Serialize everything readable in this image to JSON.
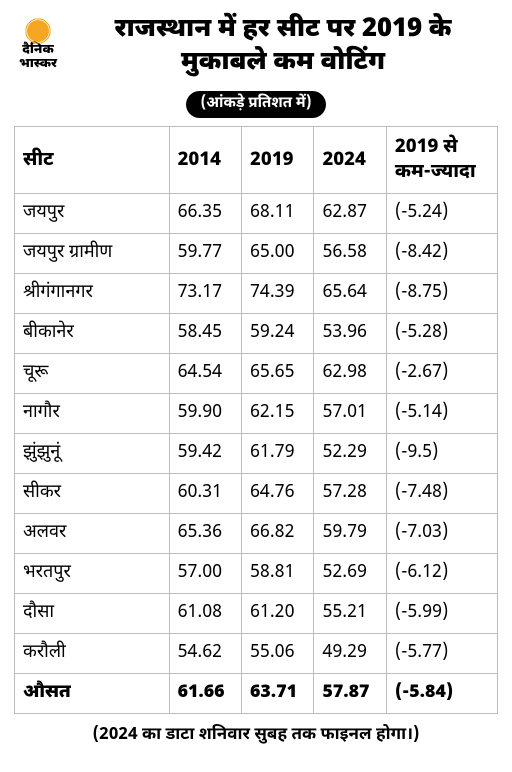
{
  "logo": {
    "line1": "दैनिक",
    "line2": "भास्कर"
  },
  "headline": "राजस्थान में हर सीट पर 2019 के मुकाबले कम वोटिंग",
  "subtitle": "(आंकड़े प्रतिशत में)",
  "columns": [
    "सीट",
    "2014",
    "2019",
    "2024",
    "2019 से कम-ज्यादा"
  ],
  "rows": [
    {
      "seat": "जयपुर",
      "y2014": "66.35",
      "y2019": "68.11",
      "y2024": "62.87",
      "diff": "(-5.24)"
    },
    {
      "seat": "जयपुर ग्रामीण",
      "y2014": "59.77",
      "y2019": "65.00",
      "y2024": "56.58",
      "diff": "(-8.42)"
    },
    {
      "seat": "श्रीगंगानगर",
      "y2014": "73.17",
      "y2019": "74.39",
      "y2024": "65.64",
      "diff": "(-8.75)"
    },
    {
      "seat": "बीकानेर",
      "y2014": "58.45",
      "y2019": "59.24",
      "y2024": "53.96",
      "diff": "(-5.28)"
    },
    {
      "seat": "चूरू",
      "y2014": "64.54",
      "y2019": "65.65",
      "y2024": "62.98",
      "diff": "(-2.67)"
    },
    {
      "seat": "नागौर",
      "y2014": "59.90",
      "y2019": "62.15",
      "y2024": "57.01",
      "diff": "(-5.14)"
    },
    {
      "seat": "झुंझुनूं",
      "y2014": "59.42",
      "y2019": "61.79",
      "y2024": "52.29",
      "diff": "(-9.5)"
    },
    {
      "seat": "सीकर",
      "y2014": "60.31",
      "y2019": "64.76",
      "y2024": "57.28",
      "diff": "(-7.48)"
    },
    {
      "seat": "अलवर",
      "y2014": "65.36",
      "y2019": "66.82",
      "y2024": "59.79",
      "diff": "(-7.03)"
    },
    {
      "seat": "भरतपुर",
      "y2014": "57.00",
      "y2019": "58.81",
      "y2024": "52.69",
      "diff": "(-6.12)"
    },
    {
      "seat": "दौसा",
      "y2014": "61.08",
      "y2019": "61.20",
      "y2024": "55.21",
      "diff": "(-5.99)"
    },
    {
      "seat": "करौली",
      "y2014": "54.62",
      "y2019": "55.06",
      "y2024": "49.29",
      "diff": "(-5.77)"
    }
  ],
  "average": {
    "seat": "औसत",
    "y2014": "61.66",
    "y2019": "63.71",
    "y2024": "57.87",
    "diff": "(-5.84)"
  },
  "footnote": "(2024 का डाटा शनिवार सुबह तक फाइनल होगा।)",
  "style": {
    "border_color": "#bdbdbd",
    "sun_color": "#f5a623",
    "pill_bg": "#000000",
    "pill_fg": "#ffffff"
  }
}
